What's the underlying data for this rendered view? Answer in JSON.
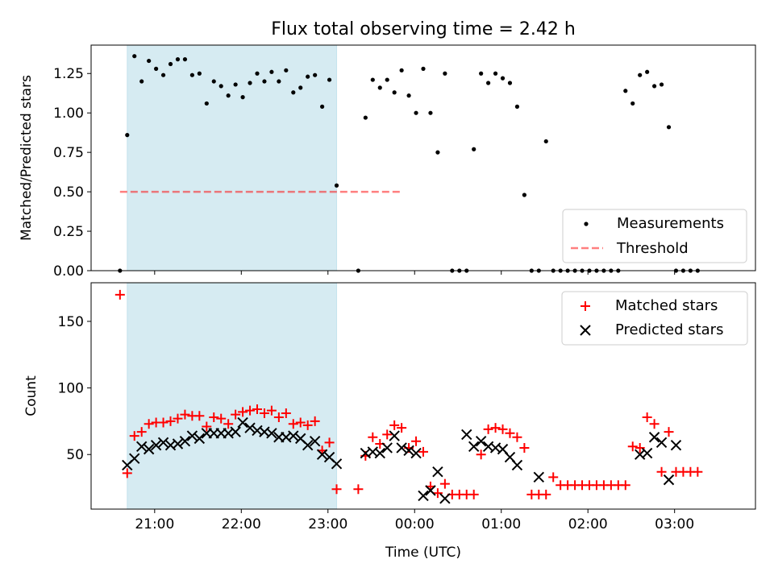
{
  "title": "Flux total observing time = 2.42 h",
  "colors": {
    "shade": "#add8e6",
    "threshold": "#ff0000",
    "matched": "#ff0000",
    "predicted": "#000000",
    "measurement": "#000000"
  },
  "chart_data": [
    {
      "type": "scatter",
      "ylabel": "Matched/Predicted stars",
      "xlabel": "",
      "ylim": [
        0,
        1.43
      ],
      "yticks": [
        "0.00",
        "0.25",
        "0.50",
        "0.75",
        "1.00",
        "1.25"
      ],
      "shaded_interval": [
        "20:41",
        "23:06"
      ],
      "legend": {
        "placement": "lower right",
        "entries": [
          "Measurements",
          "Threshold"
        ]
      },
      "threshold": {
        "name": "Threshold",
        "value": 0.5,
        "x_range": [
          "20:36",
          "23:50"
        ]
      },
      "measurements": {
        "name": "Measurements",
        "time": [
          "20:36",
          "20:41",
          "20:46",
          "20:51",
          "20:56",
          "21:01",
          "21:06",
          "21:11",
          "21:16",
          "21:21",
          "21:26",
          "21:31",
          "21:36",
          "21:41",
          "21:46",
          "21:51",
          "21:56",
          "22:01",
          "22:06",
          "22:11",
          "22:16",
          "22:21",
          "22:26",
          "22:31",
          "22:36",
          "22:41",
          "22:46",
          "22:51",
          "22:56",
          "23:01",
          "23:06",
          "23:21",
          "23:26",
          "23:31",
          "23:36",
          "23:41",
          "23:46",
          "23:51",
          "23:56",
          "00:01",
          "00:06",
          "00:11",
          "00:16",
          "00:21",
          "00:26",
          "00:31",
          "00:36",
          "00:41",
          "00:46",
          "00:51",
          "00:56",
          "01:01",
          "01:06",
          "01:11",
          "01:16",
          "01:21",
          "01:26",
          "01:31",
          "01:36",
          "01:41",
          "01:46",
          "01:51",
          "01:56",
          "02:01",
          "02:06",
          "02:11",
          "02:16",
          "02:21",
          "02:26",
          "02:31",
          "02:36",
          "02:41",
          "02:46",
          "02:51",
          "02:56",
          "03:01",
          "03:06",
          "03:11",
          "03:16"
        ],
        "ratio": [
          0.0,
          0.86,
          1.36,
          1.2,
          1.33,
          1.28,
          1.24,
          1.31,
          1.34,
          1.34,
          1.24,
          1.25,
          1.06,
          1.2,
          1.17,
          1.11,
          1.18,
          1.1,
          1.19,
          1.25,
          1.2,
          1.26,
          1.2,
          1.27,
          1.13,
          1.16,
          1.23,
          1.24,
          1.04,
          1.21,
          0.54,
          0.0,
          0.97,
          1.21,
          1.16,
          1.21,
          1.13,
          1.27,
          1.11,
          1.0,
          1.28,
          1.0,
          0.75,
          1.25,
          0.0,
          0.0,
          0.0,
          0.77,
          1.25,
          1.19,
          1.25,
          1.22,
          1.19,
          1.04,
          0.48,
          0.0,
          0.0,
          0.82,
          0.0,
          0.0,
          0.0,
          0.0,
          0.0,
          0.0,
          0.0,
          0.0,
          0.0,
          0.0,
          1.14,
          1.06,
          1.24,
          1.26,
          1.17,
          1.18,
          0.91,
          0.0,
          0.0,
          0.0,
          0.0
        ]
      }
    },
    {
      "type": "scatter",
      "ylabel": "Count",
      "xlabel": "Time (UTC)",
      "ylim": [
        9,
        179
      ],
      "yticks": [
        "50",
        "100",
        "150"
      ],
      "xticks": [
        "21:00",
        "22:00",
        "23:00",
        "00:00",
        "01:00",
        "02:00",
        "03:00"
      ],
      "x_range": [
        "20:16",
        "03:56"
      ],
      "shaded_interval": [
        "20:41",
        "23:06"
      ],
      "legend": {
        "placement": "upper right",
        "entries": [
          "Matched stars",
          "Predicted stars"
        ]
      },
      "series": [
        {
          "name": "Matched stars",
          "marker": "+",
          "time": [
            "20:36",
            "20:41",
            "20:46",
            "20:51",
            "20:56",
            "21:01",
            "21:06",
            "21:11",
            "21:16",
            "21:21",
            "21:26",
            "21:31",
            "21:36",
            "21:41",
            "21:46",
            "21:51",
            "21:56",
            "22:01",
            "22:06",
            "22:11",
            "22:16",
            "22:21",
            "22:26",
            "22:31",
            "22:36",
            "22:41",
            "22:46",
            "22:51",
            "22:56",
            "23:01",
            "23:06",
            "23:21",
            "23:26",
            "23:31",
            "23:36",
            "23:41",
            "23:46",
            "23:51",
            "23:56",
            "00:01",
            "00:06",
            "00:11",
            "00:16",
            "00:21",
            "00:26",
            "00:31",
            "00:36",
            "00:41",
            "00:46",
            "00:51",
            "00:56",
            "01:01",
            "01:06",
            "01:11",
            "01:16",
            "01:21",
            "01:26",
            "01:31",
            "01:36",
            "01:41",
            "01:46",
            "01:51",
            "01:56",
            "02:01",
            "02:06",
            "02:11",
            "02:16",
            "02:21",
            "02:26",
            "02:31",
            "02:36",
            "02:41",
            "02:46",
            "02:51",
            "02:56",
            "03:01",
            "03:06",
            "03:11",
            "03:16"
          ],
          "values": [
            170,
            36,
            64,
            67,
            73,
            74,
            74,
            75,
            77,
            80,
            79,
            79,
            71,
            78,
            77,
            73,
            80,
            82,
            83,
            84,
            81,
            83,
            78,
            81,
            73,
            74,
            72,
            75,
            53,
            59,
            24,
            24,
            49,
            63,
            58,
            65,
            72,
            70,
            55,
            60,
            52,
            26,
            21,
            28,
            20,
            20,
            20,
            20,
            50,
            69,
            70,
            69,
            66,
            63,
            55,
            20,
            20,
            20,
            33,
            27,
            27,
            27,
            27,
            27,
            27,
            27,
            27,
            27,
            27,
            56,
            55,
            78,
            73,
            37,
            67,
            37,
            37,
            37,
            37
          ]
        },
        {
          "name": "Predicted stars",
          "marker": "x",
          "time": [
            "20:41",
            "20:46",
            "20:51",
            "20:56",
            "21:01",
            "21:06",
            "21:11",
            "21:16",
            "21:21",
            "21:26",
            "21:31",
            "21:36",
            "21:41",
            "21:46",
            "21:51",
            "21:56",
            "22:01",
            "22:06",
            "22:11",
            "22:16",
            "22:21",
            "22:26",
            "22:31",
            "22:36",
            "22:41",
            "22:46",
            "22:51",
            "22:56",
            "23:01",
            "23:06",
            "23:26",
            "23:31",
            "23:36",
            "23:41",
            "23:46",
            "23:51",
            "23:56",
            "00:01",
            "00:06",
            "00:11",
            "00:16",
            "00:21",
            "00:36",
            "00:41",
            "00:46",
            "00:51",
            "00:56",
            "01:01",
            "01:06",
            "01:11",
            "01:26",
            "02:36",
            "02:41",
            "02:46",
            "02:51",
            "02:56",
            "03:01"
          ],
          "values": [
            42,
            47,
            56,
            54,
            57,
            59,
            57,
            58,
            60,
            64,
            62,
            66,
            66,
            66,
            66,
            67,
            74,
            70,
            68,
            67,
            66,
            63,
            63,
            64,
            62,
            57,
            60,
            50,
            48,
            43,
            51,
            52,
            51,
            55,
            64,
            55,
            53,
            51,
            19,
            23,
            37,
            17,
            65,
            56,
            60,
            56,
            55,
            54,
            48,
            42,
            33,
            50,
            51,
            63,
            59,
            31,
            57
          ]
        }
      ]
    }
  ]
}
